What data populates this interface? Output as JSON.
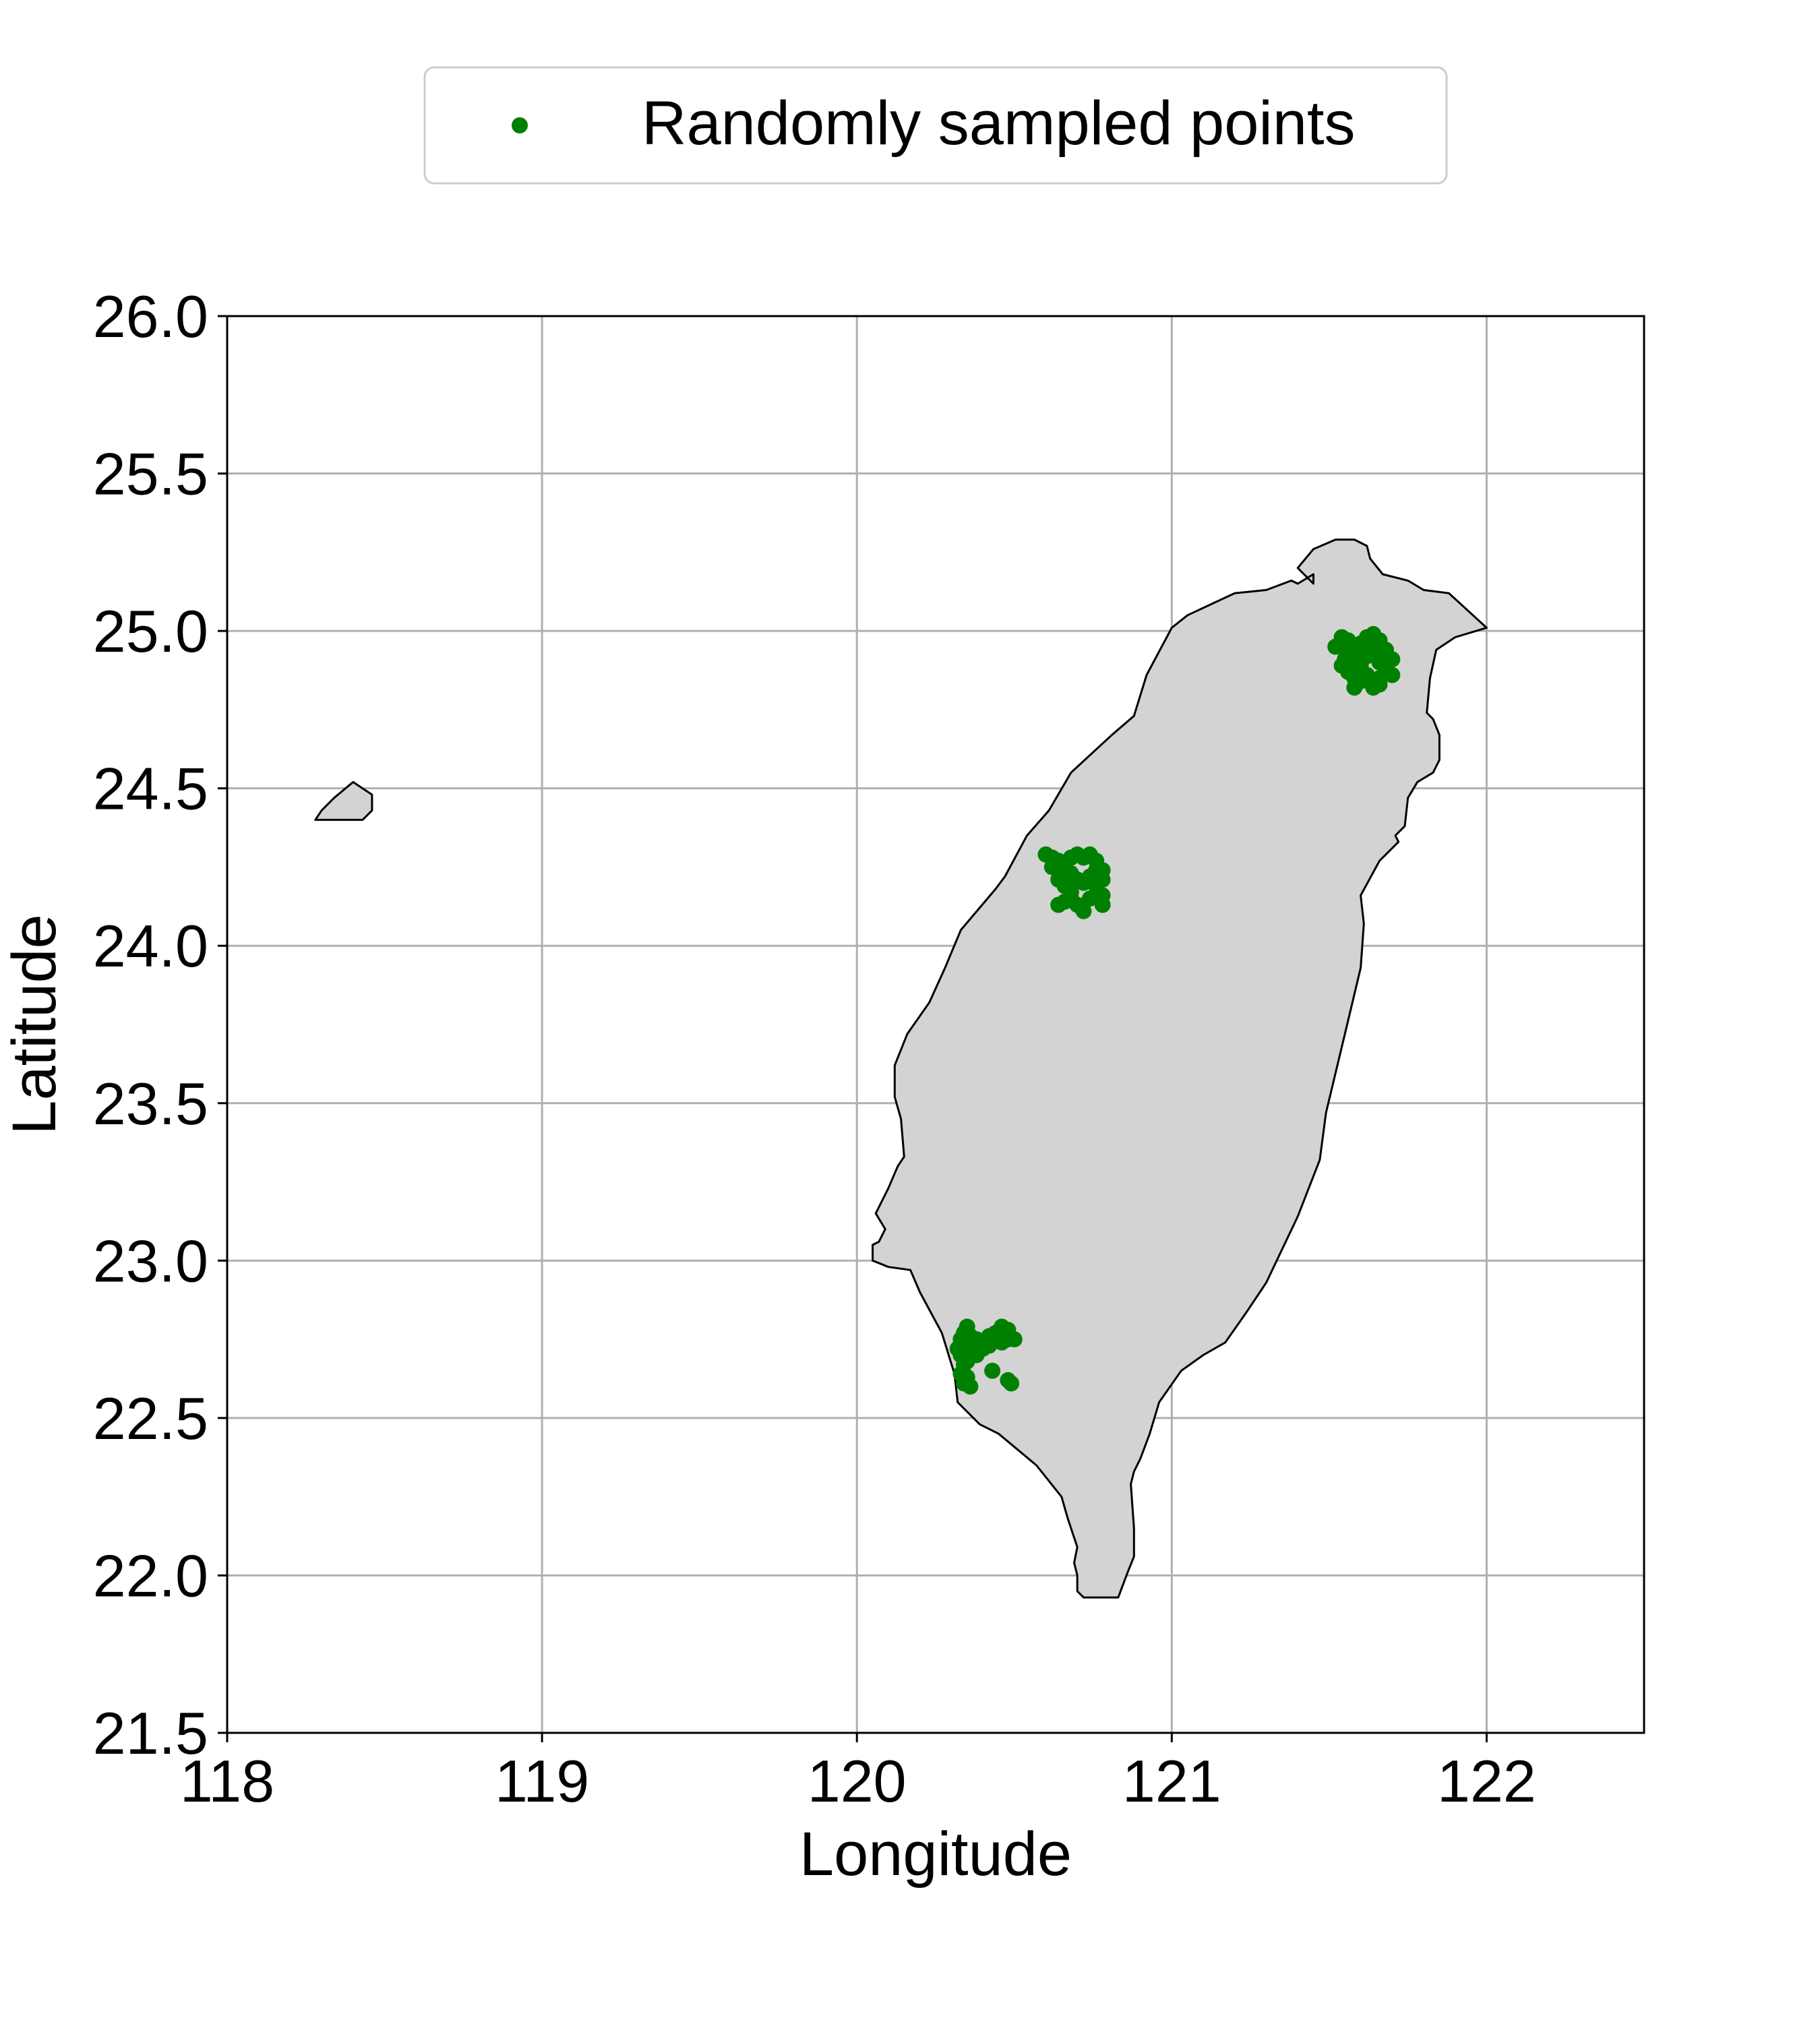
{
  "chart_data": {
    "type": "scatter",
    "title": "",
    "xlabel": "Longitude",
    "ylabel": "Latitude",
    "xlim": [
      118,
      122.5
    ],
    "ylim": [
      21.5,
      26.0
    ],
    "grid": true,
    "legend_position": "top-center",
    "x_ticks": [
      {
        "value": 118,
        "label": "118"
      },
      {
        "value": 119,
        "label": "119"
      },
      {
        "value": 120,
        "label": "120"
      },
      {
        "value": 121,
        "label": "121"
      },
      {
        "value": 122,
        "label": "122"
      }
    ],
    "y_ticks": [
      {
        "value": 21.5,
        "label": "21.5"
      },
      {
        "value": 22.0,
        "label": "22.0"
      },
      {
        "value": 22.5,
        "label": "22.5"
      },
      {
        "value": 23.0,
        "label": "23.0"
      },
      {
        "value": 23.5,
        "label": "23.5"
      },
      {
        "value": 24.0,
        "label": "24.0"
      },
      {
        "value": 24.5,
        "label": "24.5"
      },
      {
        "value": 25.0,
        "label": "25.0"
      },
      {
        "value": 25.5,
        "label": "25.5"
      },
      {
        "value": 26.0,
        "label": "26.0"
      }
    ],
    "colors": {
      "points": "#008000",
      "land_fill": "#d3d3d3",
      "coastline": "#000000",
      "grid": "#b0b0b0"
    },
    "land_polygons": [
      {
        "name": "Taiwan",
        "coords": [
          [
            121.0,
            25.01
          ],
          [
            121.05,
            25.05
          ],
          [
            121.2,
            25.12
          ],
          [
            121.3,
            25.13
          ],
          [
            121.38,
            25.16
          ],
          [
            121.4,
            25.15
          ],
          [
            121.45,
            25.18
          ],
          [
            121.45,
            25.15
          ],
          [
            121.4,
            25.2
          ],
          [
            121.45,
            25.26
          ],
          [
            121.52,
            25.29
          ],
          [
            121.58,
            25.29
          ],
          [
            121.62,
            25.27
          ],
          [
            121.63,
            25.23
          ],
          [
            121.67,
            25.18
          ],
          [
            121.75,
            25.16
          ],
          [
            121.8,
            25.13
          ],
          [
            121.88,
            25.12
          ],
          [
            122.0,
            25.01
          ],
          [
            121.9,
            24.98
          ],
          [
            121.84,
            24.94
          ],
          [
            121.82,
            24.85
          ],
          [
            121.81,
            24.74
          ],
          [
            121.83,
            24.72
          ],
          [
            121.85,
            24.67
          ],
          [
            121.85,
            24.59
          ],
          [
            121.83,
            24.55
          ],
          [
            121.78,
            24.52
          ],
          [
            121.75,
            24.47
          ],
          [
            121.74,
            24.38
          ],
          [
            121.71,
            24.35
          ],
          [
            121.72,
            24.33
          ],
          [
            121.66,
            24.27
          ],
          [
            121.6,
            24.16
          ],
          [
            121.61,
            24.07
          ],
          [
            121.6,
            23.93
          ],
          [
            121.55,
            23.72
          ],
          [
            121.49,
            23.47
          ],
          [
            121.47,
            23.32
          ],
          [
            121.4,
            23.14
          ],
          [
            121.3,
            22.93
          ],
          [
            121.24,
            22.84
          ],
          [
            121.17,
            22.74
          ],
          [
            121.1,
            22.7
          ],
          [
            121.03,
            22.65
          ],
          [
            120.96,
            22.55
          ],
          [
            120.93,
            22.45
          ],
          [
            120.9,
            22.37
          ],
          [
            120.88,
            22.33
          ],
          [
            120.87,
            22.29
          ],
          [
            120.88,
            22.15
          ],
          [
            120.88,
            22.06
          ],
          [
            120.86,
            22.01
          ],
          [
            120.83,
            21.93
          ],
          [
            120.72,
            21.93
          ],
          [
            120.7,
            21.95
          ],
          [
            120.7,
            22.0
          ],
          [
            120.69,
            22.04
          ],
          [
            120.7,
            22.09
          ],
          [
            120.67,
            22.18
          ],
          [
            120.65,
            22.25
          ],
          [
            120.57,
            22.35
          ],
          [
            120.45,
            22.45
          ],
          [
            120.39,
            22.48
          ],
          [
            120.32,
            22.55
          ],
          [
            120.31,
            22.64
          ],
          [
            120.27,
            22.77
          ],
          [
            120.2,
            22.9
          ],
          [
            120.17,
            22.97
          ],
          [
            120.1,
            22.98
          ],
          [
            120.05,
            23.0
          ],
          [
            120.05,
            23.05
          ],
          [
            120.07,
            23.06
          ],
          [
            120.09,
            23.1
          ],
          [
            120.06,
            23.15
          ],
          [
            120.1,
            23.23
          ],
          [
            120.13,
            23.3
          ],
          [
            120.15,
            23.33
          ],
          [
            120.14,
            23.45
          ],
          [
            120.12,
            23.52
          ],
          [
            120.12,
            23.62
          ],
          [
            120.16,
            23.72
          ],
          [
            120.23,
            23.82
          ],
          [
            120.28,
            23.93
          ],
          [
            120.33,
            24.05
          ],
          [
            120.44,
            24.18
          ],
          [
            120.47,
            24.22
          ],
          [
            120.54,
            24.35
          ],
          [
            120.61,
            24.43
          ],
          [
            120.68,
            24.55
          ],
          [
            120.81,
            24.67
          ],
          [
            120.88,
            24.73
          ],
          [
            120.92,
            24.86
          ]
        ]
      },
      {
        "name": "Kinmen",
        "coords": [
          [
            118.28,
            24.4
          ],
          [
            118.3,
            24.43
          ],
          [
            118.34,
            24.47
          ],
          [
            118.4,
            24.52
          ],
          [
            118.43,
            24.5
          ],
          [
            118.46,
            24.48
          ],
          [
            118.46,
            24.43
          ],
          [
            118.43,
            24.4
          ]
        ]
      }
    ],
    "series": [
      {
        "name": "Randomly sampled points",
        "marker": "circle",
        "points": [
          [
            121.52,
            24.95
          ],
          [
            121.54,
            24.98
          ],
          [
            121.56,
            24.97
          ],
          [
            121.58,
            24.95
          ],
          [
            121.6,
            24.96
          ],
          [
            121.62,
            24.98
          ],
          [
            121.64,
            24.99
          ],
          [
            121.66,
            24.97
          ],
          [
            121.68,
            24.94
          ],
          [
            121.7,
            24.91
          ],
          [
            121.56,
            24.93
          ],
          [
            121.58,
            24.91
          ],
          [
            121.6,
            24.89
          ],
          [
            121.62,
            24.92
          ],
          [
            121.64,
            24.94
          ],
          [
            121.66,
            24.9
          ],
          [
            121.68,
            24.88
          ],
          [
            121.7,
            24.86
          ],
          [
            121.54,
            24.89
          ],
          [
            121.56,
            24.87
          ],
          [
            121.58,
            24.85
          ],
          [
            121.6,
            24.84
          ],
          [
            121.62,
            24.86
          ],
          [
            121.64,
            24.84
          ],
          [
            121.66,
            24.83
          ],
          [
            121.58,
            24.82
          ],
          [
            121.64,
            24.82
          ],
          [
            121.66,
            24.85
          ],
          [
            121.55,
            24.91
          ],
          [
            121.6,
            24.93
          ],
          [
            120.6,
            24.29
          ],
          [
            120.62,
            24.28
          ],
          [
            120.64,
            24.27
          ],
          [
            120.66,
            24.26
          ],
          [
            120.68,
            24.28
          ],
          [
            120.7,
            24.29
          ],
          [
            120.72,
            24.28
          ],
          [
            120.74,
            24.29
          ],
          [
            120.76,
            24.27
          ],
          [
            120.78,
            24.24
          ],
          [
            120.78,
            24.21
          ],
          [
            120.76,
            24.19
          ],
          [
            120.78,
            24.16
          ],
          [
            120.78,
            24.13
          ],
          [
            120.74,
            24.15
          ],
          [
            120.72,
            24.11
          ],
          [
            120.7,
            24.13
          ],
          [
            120.68,
            24.15
          ],
          [
            120.66,
            24.14
          ],
          [
            120.64,
            24.13
          ],
          [
            120.66,
            24.19
          ],
          [
            120.64,
            24.21
          ],
          [
            120.66,
            24.24
          ],
          [
            120.68,
            24.23
          ],
          [
            120.7,
            24.21
          ],
          [
            120.72,
            24.2
          ],
          [
            120.74,
            24.22
          ],
          [
            120.76,
            24.24
          ],
          [
            120.62,
            24.25
          ],
          [
            120.68,
            24.17
          ],
          [
            120.32,
            22.72
          ],
          [
            120.33,
            22.75
          ],
          [
            120.34,
            22.77
          ],
          [
            120.35,
            22.79
          ],
          [
            120.36,
            22.76
          ],
          [
            120.38,
            22.75
          ],
          [
            120.4,
            22.74
          ],
          [
            120.42,
            22.76
          ],
          [
            120.44,
            22.77
          ],
          [
            120.46,
            22.79
          ],
          [
            120.48,
            22.78
          ],
          [
            120.5,
            22.75
          ],
          [
            120.33,
            22.7
          ],
          [
            120.34,
            22.67
          ],
          [
            120.33,
            22.64
          ],
          [
            120.34,
            22.61
          ],
          [
            120.36,
            22.6
          ],
          [
            120.35,
            22.63
          ],
          [
            120.37,
            22.72
          ],
          [
            120.38,
            22.7
          ],
          [
            120.36,
            22.73
          ],
          [
            120.4,
            22.72
          ],
          [
            120.42,
            22.73
          ],
          [
            120.44,
            22.75
          ],
          [
            120.46,
            22.74
          ],
          [
            120.48,
            22.75
          ],
          [
            120.43,
            22.65
          ],
          [
            120.48,
            22.62
          ],
          [
            120.49,
            22.61
          ],
          [
            120.35,
            22.68
          ]
        ]
      }
    ]
  }
}
